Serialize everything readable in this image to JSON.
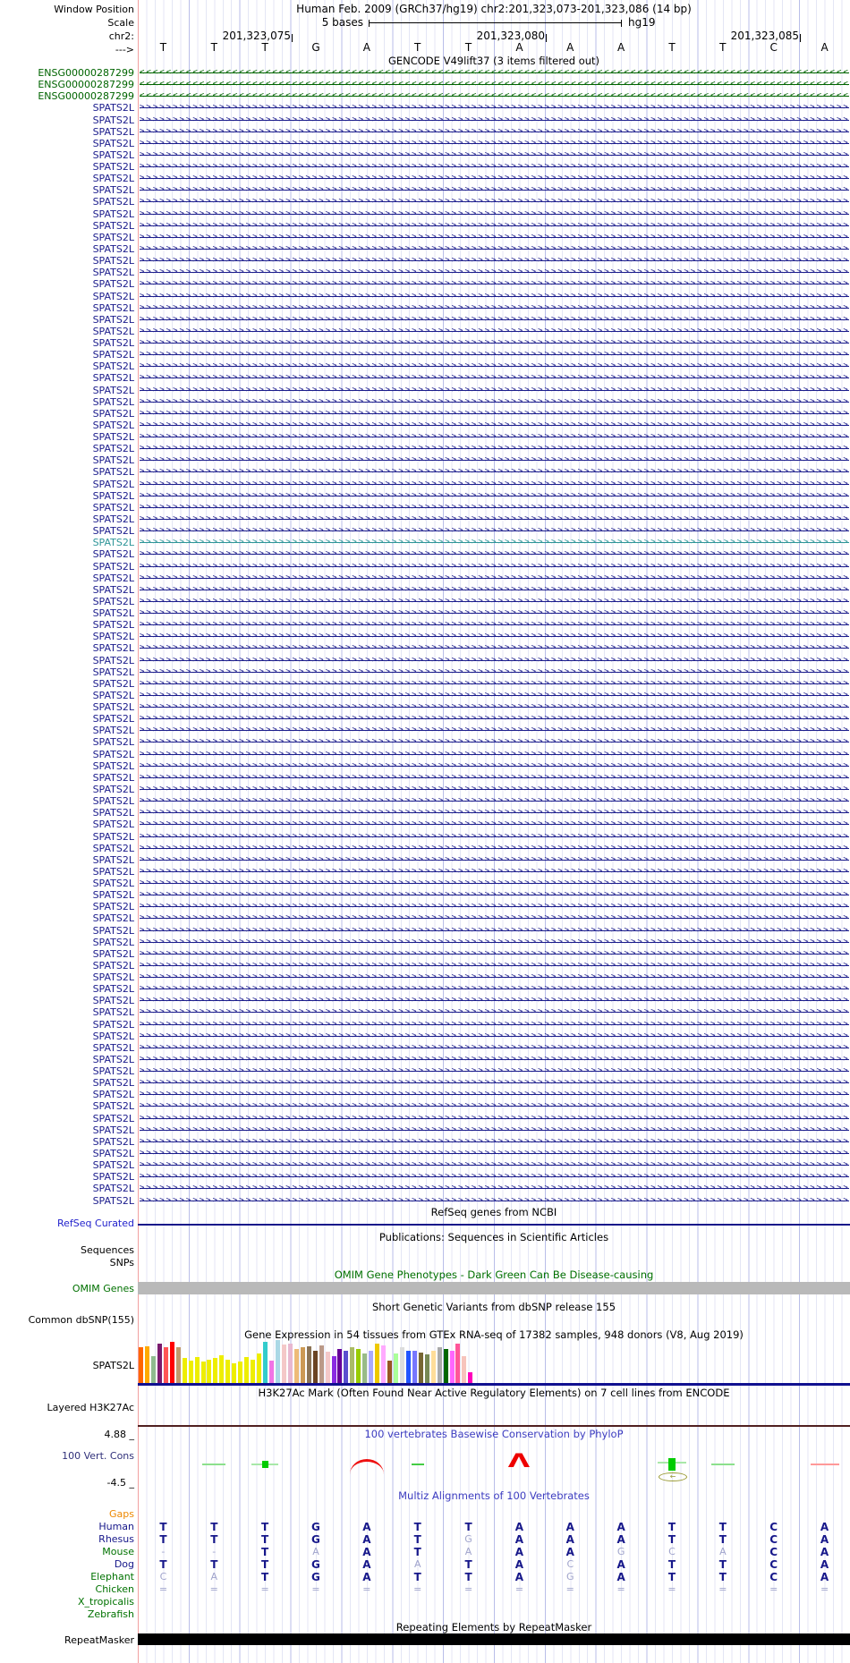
{
  "header": {
    "window_position_label": "Window Position",
    "position_title": "Human Feb. 2009 (GRCh37/hg19)   chr2:201,323,073-201,323,086 (14 bp)",
    "scale_label": "Scale",
    "scale_value": "5 bases",
    "scale_genome": "hg19",
    "chrom_label": "chr2:",
    "ruler_ticks": [
      "201,323,075",
      "201,323,080",
      "201,323,085"
    ],
    "strand_label": "--->",
    "bases": [
      "T",
      "T",
      "T",
      "G",
      "A",
      "T",
      "T",
      "A",
      "A",
      "A",
      "T",
      "T",
      "C",
      "A"
    ]
  },
  "gencode": {
    "title": "GENCODE V49lift37 (3 items filtered out)",
    "ensg_label": "ENSG00000287299",
    "ensg_rows": 3,
    "spats2l_label": "SPATS2L",
    "spats2l_rows": 94,
    "highlight_row": 37,
    "colors": {
      "ensg": "#006400",
      "spats2l": "#1b1c8c",
      "highlight": "#2e9598"
    }
  },
  "tracks": {
    "refseq_title": "RefSeq genes from NCBI",
    "refseq_label": "RefSeq Curated",
    "publications_title": "Publications: Sequences in Scientific Articles",
    "sequences_label": "Sequences",
    "snps_label": "SNPs",
    "omim_title": "OMIM Gene Phenotypes - Dark Green Can Be Disease-causing",
    "omim_label": "OMIM Genes",
    "dbsnp_title": "Short Genetic Variants from dbSNP release 155",
    "dbsnp_label": "Common dbSNP(155)",
    "gtex_title": "Gene Expression in 54 tissues from GTEx RNA-seq of 17382 samples, 948 donors (V8, Aug 2019)",
    "gtex_label": "SPATS2L",
    "h3k27ac_title": "H3K27Ac Mark (Often Found Near Active Regulatory Elements) on 7 cell lines from ENCODE",
    "h3k27ac_label": "Layered H3K27Ac",
    "phylop_title": "100 vertebrates Basewise Conservation by PhyloP",
    "phylop_label": "100 Vert. Cons",
    "phylop_max": "4.88 _",
    "phylop_min": "-4.5 _",
    "multiz_title": "Multiz Alignments of 100 Vertebrates",
    "repeat_title": "Repeating Elements by RepeatMasker",
    "repeat_label": "RepeatMasker"
  },
  "colors": {
    "navy": "#1b1c8c",
    "track_blue_title": "#3c3cc0",
    "green_label": "#007200",
    "omim_green": "#007000",
    "refseq_blue": "#2222cc",
    "gaps_orange": "#ee8800",
    "cons_label": "#30307a",
    "dim_letter": "#a0a4cc",
    "omim_bar_gray": "#b9b9b9",
    "maroon_line": "#502020"
  },
  "chart_data": [
    {
      "type": "bar",
      "title": "Gene Expression in 54 tissues from GTEx RNA-seq of 17382 samples, 948 donors (V8, Aug 2019)",
      "gene": "SPATS2L",
      "note": "values are estimated bar heights in pixels (no numeric axis shown); colors follow GTEx tissue palette",
      "values": [
        40,
        41,
        30,
        44,
        40,
        46,
        40,
        28,
        25,
        29,
        24,
        26,
        28,
        31,
        26,
        22,
        24,
        29,
        26,
        33,
        46,
        25,
        48,
        43,
        44,
        38,
        40,
        41,
        36,
        42,
        35,
        30,
        38,
        36,
        40,
        38,
        33,
        36,
        44,
        42,
        25,
        33,
        40,
        36,
        36,
        34,
        32,
        36,
        40,
        38,
        36,
        44,
        30,
        12
      ],
      "colors": [
        "#ff6600",
        "#ffaa00",
        "#8fbc8f",
        "#7a1a6e",
        "#ff5555",
        "#ff0000",
        "#c19a6b",
        "#eeee00",
        "#eeee00",
        "#eeee00",
        "#eeee00",
        "#eeee00",
        "#eeee00",
        "#eeee00",
        "#eeee00",
        "#eeee00",
        "#eeee00",
        "#eeee00",
        "#eeee00",
        "#eeee00",
        "#33cccc",
        "#f075e5",
        "#aad8e6",
        "#f4c8c8",
        "#e8b8d0",
        "#eebb77",
        "#cc9955",
        "#8b7355",
        "#6b4423",
        "#bb9988",
        "#f4c8c8",
        "#8a2be2",
        "#660099",
        "#5a4fcf",
        "#aabb66",
        "#99cc00",
        "#99bb88",
        "#aaaaff",
        "#eec900",
        "#ffaaff",
        "#995522",
        "#aaff99",
        "#dddddd",
        "#2255ff",
        "#7777ff",
        "#776633",
        "#778855",
        "#ffdd99",
        "#aaaaaa",
        "#006600",
        "#ff66ff",
        "#ff5599",
        "#f7c4bc",
        "#ff00bb"
      ],
      "xlabel": "",
      "ylabel": ""
    },
    {
      "type": "area",
      "title": "100 vertebrates Basewise Conservation by PhyloP",
      "ylim": [
        -4.5,
        4.88
      ],
      "x_bases": [
        "T",
        "T",
        "T",
        "G",
        "A",
        "T",
        "T",
        "A",
        "A",
        "A",
        "T",
        "T",
        "C",
        "A"
      ],
      "marks": [
        {
          "base": 2,
          "kind": "green-dash"
        },
        {
          "base": 3,
          "kind": "green-block"
        },
        {
          "base": 5,
          "kind": "red-arc"
        },
        {
          "base": 6,
          "kind": "green-dash-small"
        },
        {
          "base": 8,
          "kind": "red-peak"
        },
        {
          "base": 11,
          "kind": "green-block-tall",
          "gap_arrow": true
        },
        {
          "base": 12,
          "kind": "green-dash"
        },
        {
          "base": 14,
          "kind": "red-dash-light"
        }
      ]
    }
  ],
  "alignment": {
    "note": "uppercase = strong navy letter, lowercase = dim letter, - and = dim glyphs",
    "rows": [
      {
        "label": "Gaps",
        "label_color": "#ee8800",
        "cells": []
      },
      {
        "label": "Human",
        "label_color": "#16178a",
        "cells": [
          "T",
          "T",
          "T",
          "G",
          "A",
          "T",
          "T",
          "A",
          "A",
          "A",
          "T",
          "T",
          "C",
          "A"
        ]
      },
      {
        "label": "Rhesus",
        "label_color": "#16178a",
        "cells": [
          "T",
          "T",
          "T",
          "G",
          "A",
          "T",
          "g",
          "A",
          "A",
          "A",
          "T",
          "T",
          "C",
          "A"
        ]
      },
      {
        "label": "Mouse",
        "label_color": "#007200",
        "cells": [
          "-",
          "-",
          "T",
          "a",
          "A",
          "T",
          "a",
          "A",
          "A",
          "g",
          "c",
          "a",
          "C",
          "A"
        ]
      },
      {
        "label": "Dog",
        "label_color": "#16178a",
        "cells": [
          "T",
          "T",
          "T",
          "G",
          "A",
          "a",
          "T",
          "A",
          "c",
          "A",
          "T",
          "T",
          "C",
          "A"
        ]
      },
      {
        "label": "Elephant",
        "label_color": "#007200",
        "cells": [
          "c",
          "a",
          "T",
          "G",
          "A",
          "T",
          "T",
          "A",
          "g",
          "A",
          "T",
          "T",
          "C",
          "A"
        ]
      },
      {
        "label": "Chicken",
        "label_color": "#007200",
        "cells": [
          "=",
          "=",
          "=",
          "=",
          "=",
          "=",
          "=",
          "=",
          "=",
          "=",
          "=",
          "=",
          "=",
          "="
        ]
      },
      {
        "label": "X_tropicalis",
        "label_color": "#007200",
        "cells": []
      },
      {
        "label": "Zebrafish",
        "label_color": "#007200",
        "cells": []
      }
    ]
  }
}
